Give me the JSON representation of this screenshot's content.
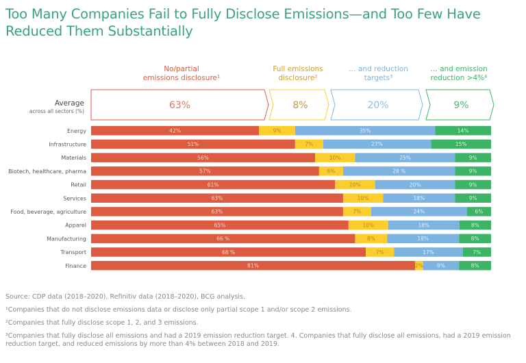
{
  "title": "Too Many Companies Fail to Fully Disclose Emissions—and Too Few Have Reduced Them Substantially",
  "average_label": "Average",
  "average_sublabel": "across all sectors (%)",
  "colors": {
    "no_partial": "#dd5b40",
    "full": "#fbcd2d",
    "targets": "#7db3e1",
    "reduction": "#3db365",
    "title": "#3aa27f"
  },
  "chart_data": {
    "type": "bar",
    "orientation": "horizontal",
    "stacked": true,
    "title": "Too Many Companies Fail to Fully Disclose Emissions—and Too Few Have Reduced Them Substantially",
    "xlabel": "",
    "ylabel": "",
    "xlim": [
      0,
      100
    ],
    "grid": false,
    "categories": [
      "Energy",
      "Infrastructure",
      "Materials",
      "Biotech, healthcare, pharma",
      "Retail",
      "Services",
      "Food, beverage, agriculture",
      "Apparel",
      "Manufacturing",
      "Transport",
      "Finance"
    ],
    "series": [
      {
        "name": "No/partial emissions disclosure¹",
        "key": "no_partial",
        "values": [
          42,
          51,
          56,
          57,
          61,
          63,
          63,
          65,
          66,
          68,
          81
        ],
        "labels": [
          "42%",
          "51%",
          "56%",
          "57%",
          "61%",
          "63%",
          "63%",
          "65%",
          "66 %",
          "68 %",
          "81%"
        ],
        "average": "63%"
      },
      {
        "name": "Full emissions disclosure²",
        "key": "full",
        "values": [
          9,
          7,
          10,
          6,
          10,
          10,
          7,
          10,
          8,
          7,
          2
        ],
        "labels": [
          "9%",
          "7%",
          "10%",
          "6%",
          "10%",
          "10%",
          "7%",
          "10%",
          "8%",
          "7%",
          "2%"
        ],
        "average": "8%"
      },
      {
        "name": "… and reduction targets³",
        "key": "targets",
        "values": [
          35,
          27,
          25,
          28,
          20,
          18,
          24,
          18,
          18,
          17,
          9
        ],
        "labels": [
          "35%",
          "27%",
          "25%",
          "28 %",
          "20%",
          "18%",
          "24%",
          "18%",
          "18%",
          "17%",
          "9%"
        ],
        "average": "20%"
      },
      {
        "name": "… and emission reduction >4%⁴",
        "key": "reduction",
        "values": [
          14,
          15,
          9,
          9,
          9,
          9,
          6,
          8,
          8,
          7,
          8
        ],
        "labels": [
          "14%",
          "15%",
          "9%",
          "9%",
          "9%",
          "9%",
          "6%",
          "8%",
          "8%",
          "7%",
          "8%"
        ],
        "average": "9%"
      }
    ],
    "legend": "top",
    "headers": [
      {
        "line1": "No/partial",
        "line2": "emissions disclosure¹"
      },
      {
        "line1": "Full emissions",
        "line2": "disclosure²"
      },
      {
        "line1": "… and reduction",
        "line2": "targets³"
      },
      {
        "line1": "… and emission",
        "line2": "reduction >4%⁴"
      }
    ]
  },
  "notes": {
    "source": "Source: CDP data (2018–2020), Refinitiv data (2018–2020), BCG analysis.",
    "note1": "¹Companies that do not disclose emissions data or disclose only partial scope 1 and/or scope 2 emissions.",
    "note2": "²Companies that fully disclose scope 1, 2, and 3 emissions.",
    "note3": "³Companies that fully disclose all emissions and had a 2019 emission reduction target. 4. Companies that fully disclose all emissions, had a 2019 emission reduction target, and reduced emissions by more than 4% between 2018 and 2019."
  }
}
